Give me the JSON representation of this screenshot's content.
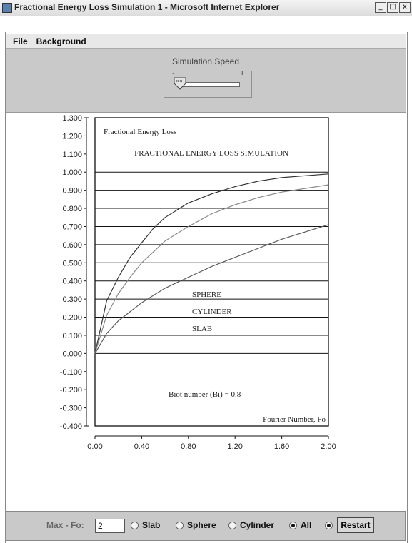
{
  "window": {
    "title": "Fractional Energy Loss Simulation 1 - Microsoft Internet Explorer",
    "min": "_",
    "max": "□",
    "close": "x"
  },
  "menu": [
    "File",
    "Background"
  ],
  "speed": {
    "title": "Simulation Speed",
    "min_label": "-",
    "max_label": "+",
    "value": 0.05
  },
  "controls": {
    "maxfo_label": "Max - Fo:",
    "maxfo_value": "2",
    "slab": "Slab",
    "sphere": "Sphere",
    "cylinder": "Cylinder",
    "all": "All",
    "restart": "Restart",
    "selected": "all"
  },
  "chart_data": {
    "type": "line",
    "title": "FRACTIONAL ENERGY LOSS SIMULATION",
    "ylabel": "Fractional Energy Loss",
    "xlabel": "Fourier Number, Fo",
    "annotation": "Biot number (Bi) = 0.8",
    "xlim": [
      0,
      2
    ],
    "ylim": [
      -0.4,
      1.3
    ],
    "x_ticks": [
      "0.00",
      "0.40",
      "0.80",
      "1.20",
      "1.60",
      "2.00"
    ],
    "y_ticks": [
      "1.300",
      "1.200",
      "1.100",
      "1.000",
      "0.900",
      "0.800",
      "0.700",
      "0.600",
      "0.500",
      "0.400",
      "0.300",
      "0.200",
      "0.100",
      "0.000",
      "-0.100",
      "-0.200",
      "-0.300",
      "-0.400"
    ],
    "gridlines": [
      1.0,
      0.9,
      0.8,
      0.7,
      0.6,
      0.5,
      0.4,
      0.3,
      0.2,
      0.1,
      0.0
    ],
    "series": [
      {
        "name": "SPHERE",
        "color": "#333333",
        "x": [
          0,
          0.1,
          0.2,
          0.3,
          0.4,
          0.5,
          0.6,
          0.7,
          0.8,
          1.0,
          1.2,
          1.4,
          1.6,
          1.8,
          2.0
        ],
        "y": [
          0,
          0.29,
          0.42,
          0.53,
          0.61,
          0.69,
          0.75,
          0.79,
          0.83,
          0.88,
          0.92,
          0.95,
          0.97,
          0.98,
          0.99
        ]
      },
      {
        "name": "CYLINDER",
        "color": "#8a8a8a",
        "x": [
          0,
          0.1,
          0.2,
          0.3,
          0.4,
          0.5,
          0.6,
          0.7,
          0.8,
          1.0,
          1.2,
          1.4,
          1.6,
          1.8,
          2.0
        ],
        "y": [
          0,
          0.21,
          0.33,
          0.42,
          0.5,
          0.56,
          0.62,
          0.66,
          0.7,
          0.77,
          0.82,
          0.86,
          0.89,
          0.91,
          0.93
        ]
      },
      {
        "name": "SLAB",
        "color": "#5a5a5a",
        "x": [
          0,
          0.1,
          0.2,
          0.3,
          0.4,
          0.5,
          0.6,
          0.7,
          0.8,
          1.0,
          1.2,
          1.4,
          1.6,
          1.8,
          2.0
        ],
        "y": [
          0,
          0.11,
          0.18,
          0.23,
          0.28,
          0.32,
          0.36,
          0.39,
          0.42,
          0.48,
          0.53,
          0.58,
          0.63,
          0.67,
          0.71
        ]
      }
    ],
    "legend": [
      "SPHERE",
      "CYLINDER",
      "SLAB"
    ]
  }
}
